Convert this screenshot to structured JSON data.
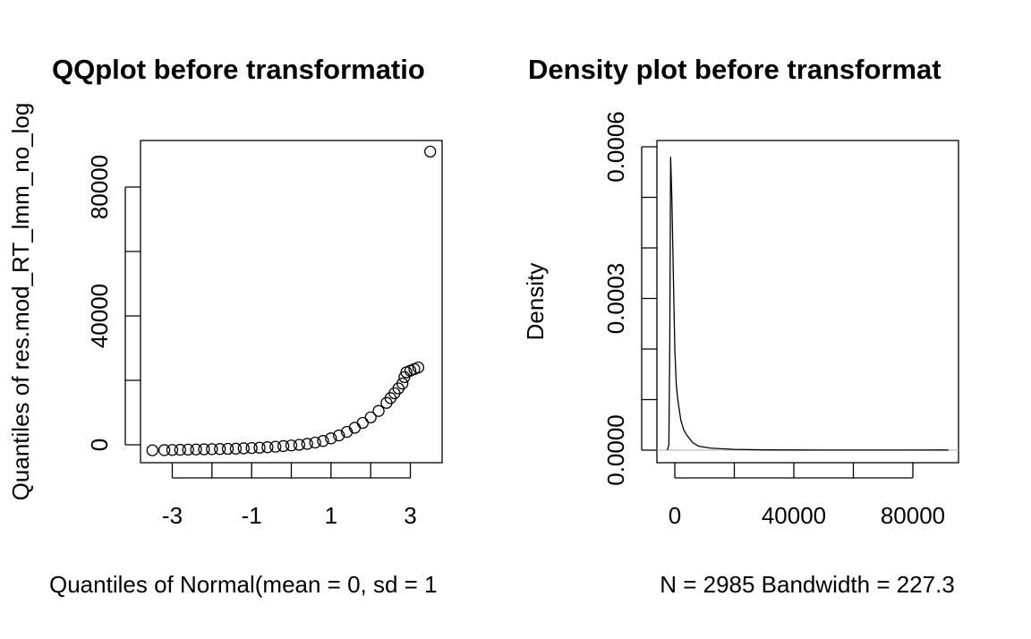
{
  "chart_data": [
    {
      "type": "scatter",
      "title": "QQplot before transformatio",
      "xlabel": "Quantiles of Normal(mean = 0, sd = 1",
      "ylabel": "Quantiles of res.mod_RT_lmm_no_log",
      "x": [
        -3.5,
        -3.2,
        -3.0,
        -2.8,
        -2.6,
        -2.4,
        -2.2,
        -2.0,
        -1.8,
        -1.6,
        -1.4,
        -1.2,
        -1.0,
        -0.8,
        -0.6,
        -0.4,
        -0.2,
        0,
        0.2,
        0.4,
        0.6,
        0.8,
        1.0,
        1.2,
        1.4,
        1.6,
        1.8,
        2.0,
        2.2,
        2.4,
        2.5,
        2.6,
        2.7,
        2.8,
        2.85,
        2.9,
        3.0,
        3.1,
        3.2,
        3.5
      ],
      "values": [
        -1700,
        -1650,
        -1600,
        -1550,
        -1500,
        -1450,
        -1400,
        -1350,
        -1300,
        -1250,
        -1200,
        -1100,
        -1000,
        -900,
        -750,
        -600,
        -400,
        -200,
        0,
        300,
        700,
        1200,
        2000,
        2900,
        4000,
        5300,
        6800,
        8500,
        10500,
        13000,
        14500,
        16000,
        17500,
        19000,
        21000,
        22500,
        23000,
        23500,
        24000,
        91000
      ],
      "color": "#000000",
      "xlim": [
        -3.8,
        3.8
      ],
      "xticks": [
        -3,
        -1,
        1,
        3
      ],
      "xminorticks": [
        -2,
        0,
        2
      ],
      "ylim": [
        -5556,
        94444
      ],
      "yticks": [
        0,
        40000,
        80000
      ],
      "yminorticks": [
        20000,
        60000
      ]
    },
    {
      "type": "line",
      "title": "Density plot before transformat",
      "xlabel": "N = 2985   Bandwidth = 227.3",
      "ylabel": "Density",
      "x": [
        -2500,
        -2000,
        -1700,
        -1400,
        -1000,
        -500,
        0,
        500,
        1000,
        2000,
        3000,
        4000,
        6000,
        8000,
        12000,
        20000,
        30000,
        50000,
        80000,
        90000,
        92000
      ],
      "values": [
        0,
        1e-05,
        0.0002,
        0.00058,
        0.0005,
        0.00035,
        0.0002,
        0.00013,
        0.0001,
        6e-05,
        4e-05,
        3e-05,
        1.5e-05,
        8e-06,
        4e-06,
        1.5e-06,
        5e-07,
        2e-07,
        2e-07,
        3e-07,
        0
      ],
      "color": "#000000",
      "xlim": [
        -6015,
        95340
      ],
      "xticks": [
        0,
        40000,
        80000
      ],
      "xminorticks": [
        20000,
        60000
      ],
      "ylim": [
        -2.48e-05,
        0.0006124
      ],
      "yticks": [
        {
          "value": 0,
          "label": "0.0000"
        },
        {
          "value": 0.0003,
          "label": "0.0003"
        },
        {
          "value": 0.0006,
          "label": "0.0006"
        }
      ],
      "yminorticks": [
        0.0001,
        0.0002,
        0.0004,
        0.0005
      ]
    }
  ]
}
